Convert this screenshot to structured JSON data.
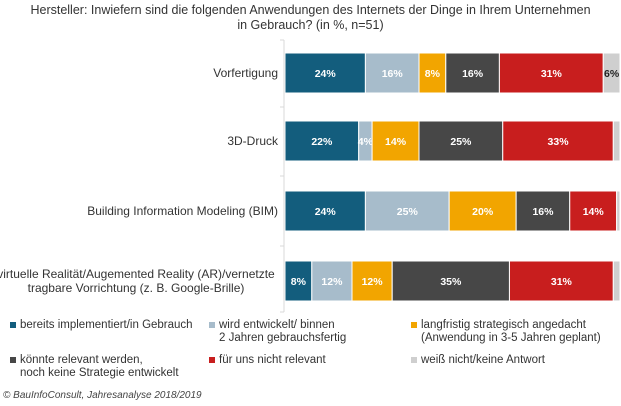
{
  "chart_data": {
    "type": "bar",
    "orientation": "horizontal",
    "stacked": true,
    "title": "Hersteller: Inwiefern sind die folgenden Anwendungen des Internets der Dinge in Ihrem Unternehmen in Gebrauch? (in %, n=51)",
    "title_lines": [
      "Hersteller: Inwiefern sind die folgenden Anwendungen des Internets der Dinge in Ihrem Unternehmen",
      "in Gebrauch? (in %, n=51)"
    ],
    "xlabel": "",
    "ylabel": "",
    "xlim": [
      0,
      100
    ],
    "grid": false,
    "legend_position": "bottom",
    "categories": [
      "Vorfertigung",
      "3D-Druck",
      "Building Information Modeling (BIM)",
      "virtuelle Realität/Augemented Reality (AR)/vernetzte tragbare Vorrichtung (z. B. Google-Brille)"
    ],
    "category_lines": [
      [
        "Vorfertigung"
      ],
      [
        "3D-Druck"
      ],
      [
        "Building Information Modeling (BIM)"
      ],
      [
        "virtuelle Realität/Augemented Reality (AR)/vernetzte",
        "tragbare Vorrichtung (z. B. Google-Brille)"
      ]
    ],
    "series": [
      {
        "name": "bereits implementiert/in Gebrauch",
        "color": "#135d7d",
        "label_color": "#ffffff",
        "values": [
          24,
          22,
          24,
          8
        ],
        "labels": [
          "24%",
          "22%",
          "24%",
          "8%"
        ]
      },
      {
        "name": "wird entwickelt/ binnen 2 Jahren gebrauchsfertig",
        "color": "#a7bccb",
        "label_color": "#ffffff",
        "values": [
          16,
          4,
          25,
          12
        ],
        "labels": [
          "16%",
          "4%",
          "25%",
          "12%"
        ]
      },
      {
        "name": "langfristig strategisch angedacht (Anwendung in 3-5 Jahren geplant)",
        "color": "#f2a500",
        "label_color": "#ffffff",
        "values": [
          8,
          14,
          20,
          12
        ],
        "labels": [
          "8%",
          "14%",
          "20%",
          "12%"
        ]
      },
      {
        "name": "könnte relevant werden, noch keine Strategie entwickelt",
        "color": "#474747",
        "label_color": "#ffffff",
        "values": [
          16,
          25,
          16,
          35
        ],
        "labels": [
          "16%",
          "25%",
          "16%",
          "35%"
        ]
      },
      {
        "name": "für uns nicht relevant",
        "color": "#c81e1e",
        "label_color": "#ffffff",
        "values": [
          31,
          33,
          14,
          31
        ],
        "labels": [
          "31%",
          "33%",
          "14%",
          "31%"
        ]
      },
      {
        "name": "weiß nicht/keine Antwort",
        "color": "#cfcfcf",
        "label_color": "#222222",
        "values": [
          6,
          2,
          2,
          2
        ],
        "labels": [
          "6%",
          "",
          "",
          ""
        ]
      }
    ]
  },
  "legend": [
    {
      "lines": [
        "bereits implementiert/in Gebrauch"
      ],
      "color": "#135d7d"
    },
    {
      "lines": [
        "wird entwickelt/ binnen",
        "2 Jahren gebrauchsfertig"
      ],
      "color": "#a7bccb"
    },
    {
      "lines": [
        "langfristig strategisch angedacht",
        "(Anwendung in 3-5 Jahren geplant)"
      ],
      "color": "#f2a500"
    },
    {
      "lines": [
        "könnte relevant werden,",
        "noch keine Strategie entwickelt"
      ],
      "color": "#474747"
    },
    {
      "lines": [
        "für uns nicht relevant"
      ],
      "color": "#c81e1e"
    },
    {
      "lines": [
        "weiß nicht/keine Antwort"
      ],
      "color": "#cfcfcf"
    }
  ],
  "footer": "© BauInfoConsult, Jahresanalyse 2018/2019"
}
